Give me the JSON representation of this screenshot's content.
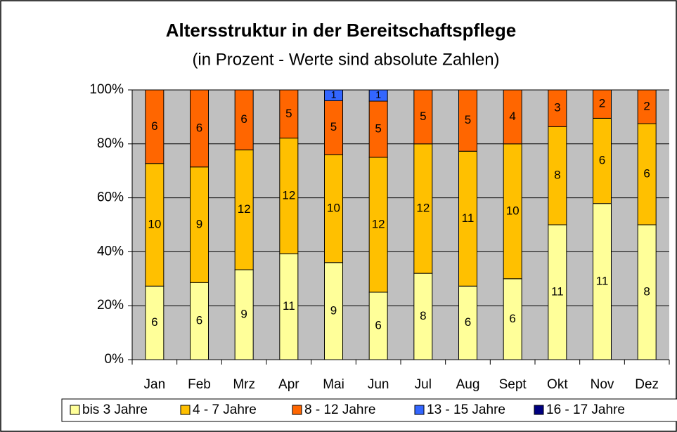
{
  "chart_data": {
    "type": "bar",
    "stacking": "percent",
    "title": "Altersstruktur in der Bereitschaftspflege",
    "subtitle": "(in Prozent - Werte sind absolute Zahlen)",
    "categories": [
      "Jan",
      "Feb",
      "Mrz",
      "Apr",
      "Mai",
      "Jun",
      "Jul",
      "Aug",
      "Sept",
      "Okt",
      "Nov",
      "Dez"
    ],
    "series": [
      {
        "name": "bis 3 Jahre",
        "color": "#ffff99",
        "values": [
          6,
          6,
          9,
          11,
          9,
          6,
          8,
          6,
          6,
          11,
          11,
          8
        ]
      },
      {
        "name": "4 - 7 Jahre",
        "color": "#ffc000",
        "values": [
          10,
          9,
          12,
          12,
          10,
          12,
          12,
          11,
          10,
          8,
          6,
          6
        ]
      },
      {
        "name": "8 - 12 Jahre",
        "color": "#ff6600",
        "values": [
          6,
          6,
          6,
          5,
          5,
          5,
          5,
          5,
          4,
          3,
          2,
          2
        ]
      },
      {
        "name": "13 - 15 Jahre",
        "color": "#3366ff",
        "values": [
          null,
          null,
          null,
          null,
          1,
          1,
          null,
          null,
          null,
          null,
          null,
          null
        ]
      },
      {
        "name": "16 - 17 Jahre",
        "color": "#000080",
        "values": [
          null,
          null,
          null,
          null,
          null,
          null,
          null,
          null,
          null,
          null,
          null,
          null
        ]
      }
    ],
    "ylim": [
      0,
      100
    ],
    "yticks": [
      {
        "value": 0,
        "label": "0%"
      },
      {
        "value": 20,
        "label": "20%"
      },
      {
        "value": 40,
        "label": "40%"
      },
      {
        "value": 60,
        "label": "60%"
      },
      {
        "value": 80,
        "label": "80%"
      },
      {
        "value": 100,
        "label": "100%"
      }
    ],
    "grid": true,
    "legend": "bottom"
  }
}
